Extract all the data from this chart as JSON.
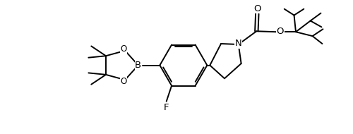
{
  "background": "#ffffff",
  "line_width": 1.4,
  "font_size": 8.5,
  "figsize": [
    5.0,
    1.9
  ],
  "dpi": 100,
  "xlim": [
    0,
    10
  ],
  "ylim": [
    0,
    3.8
  ]
}
